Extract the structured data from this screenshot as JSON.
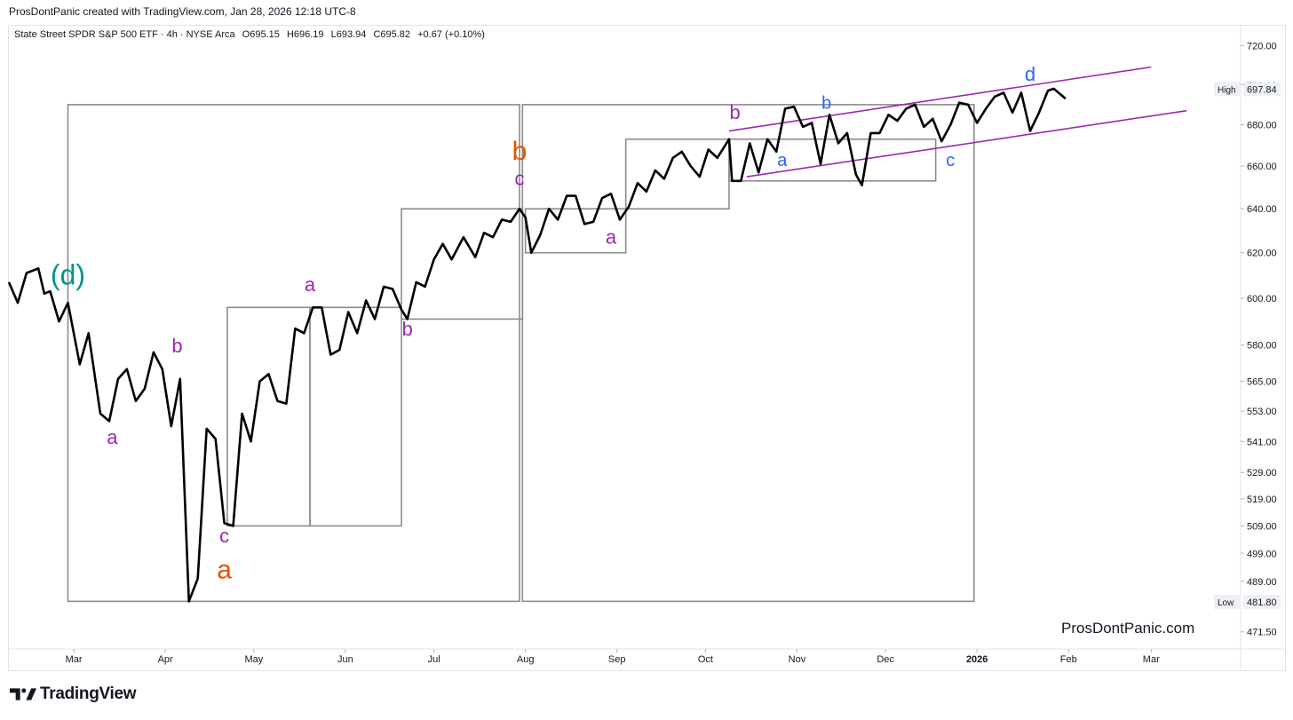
{
  "header": {
    "attribution": "ProsDontPanic created with TradingView.com, Jan 28, 2026 12:18 UTC-8"
  },
  "legend": {
    "symbol": "State Street SPDR S&P 500 ETF · 4h · NYSE Arca",
    "open": "O695.15",
    "high": "H696.19",
    "low": "L693.94",
    "close": "C695.82",
    "change": "+0.67 (+0.10%)"
  },
  "watermark": "ProsDontPanic.com",
  "footer": {
    "brand": "TradingView"
  },
  "colors": {
    "price_line": "#000000",
    "box": "#8c8c8c",
    "channel": "#9c27b0",
    "label_purple": "#9c27b0",
    "label_orange": "#e65100",
    "label_blue": "#2962ff",
    "label_teal": "#009688"
  },
  "chart_data": {
    "type": "line",
    "title": "State Street SPDR S&P 500 ETF",
    "scale": "log",
    "ylim": [
      466,
      730
    ],
    "xlim": [
      "2025-02-07",
      "2026-03-31"
    ],
    "x_ticks": [
      "Mar",
      "Apr",
      "May",
      "Jun",
      "Jul",
      "Aug",
      "Sep",
      "Oct",
      "Nov",
      "Dec",
      "2026",
      "Feb",
      "Mar"
    ],
    "y_ticks": [
      720,
      700,
      680,
      660,
      640,
      620,
      600,
      580,
      565,
      553,
      541,
      529,
      519,
      509,
      499,
      489,
      471.5
    ],
    "price_markers": [
      {
        "label": "High",
        "value": "697.84"
      },
      {
        "label": "Low",
        "value": "481.80"
      }
    ],
    "series": [
      {
        "values": [
          [
            "2025-02-07",
            607
          ],
          [
            "2025-02-10",
            598
          ],
          [
            "2025-02-13",
            611
          ],
          [
            "2025-02-17",
            613
          ],
          [
            "2025-02-19",
            602
          ],
          [
            "2025-02-21",
            603
          ],
          [
            "2025-02-24",
            590
          ],
          [
            "2025-02-27",
            598
          ],
          [
            "2025-03-03",
            572
          ],
          [
            "2025-03-06",
            585
          ],
          [
            "2025-03-10",
            552
          ],
          [
            "2025-03-13",
            549
          ],
          [
            "2025-03-16",
            566
          ],
          [
            "2025-03-19",
            570
          ],
          [
            "2025-03-22",
            557
          ],
          [
            "2025-03-25",
            562
          ],
          [
            "2025-03-28",
            577
          ],
          [
            "2025-03-31",
            570
          ],
          [
            "2025-04-03",
            547
          ],
          [
            "2025-04-06",
            566
          ],
          [
            "2025-04-09",
            482
          ],
          [
            "2025-04-12",
            490
          ],
          [
            "2025-04-15",
            546
          ],
          [
            "2025-04-18",
            542
          ],
          [
            "2025-04-21",
            510
          ],
          [
            "2025-04-24",
            509
          ],
          [
            "2025-04-27",
            552
          ],
          [
            "2025-04-30",
            541
          ],
          [
            "2025-05-03",
            565
          ],
          [
            "2025-05-06",
            568
          ],
          [
            "2025-05-09",
            557
          ],
          [
            "2025-05-12",
            556
          ],
          [
            "2025-05-15",
            587
          ],
          [
            "2025-05-18",
            585
          ],
          [
            "2025-05-21",
            596
          ],
          [
            "2025-05-24",
            596
          ],
          [
            "2025-05-27",
            576
          ],
          [
            "2025-05-30",
            578
          ],
          [
            "2025-06-02",
            594
          ],
          [
            "2025-06-05",
            585
          ],
          [
            "2025-06-08",
            599
          ],
          [
            "2025-06-11",
            591
          ],
          [
            "2025-06-14",
            605
          ],
          [
            "2025-06-17",
            604
          ],
          [
            "2025-06-20",
            595
          ],
          [
            "2025-06-22",
            591
          ],
          [
            "2025-06-25",
            607
          ],
          [
            "2025-06-28",
            605
          ],
          [
            "2025-07-01",
            617
          ],
          [
            "2025-07-04",
            624
          ],
          [
            "2025-07-07",
            617
          ],
          [
            "2025-07-11",
            627
          ],
          [
            "2025-07-15",
            618
          ],
          [
            "2025-07-18",
            629
          ],
          [
            "2025-07-21",
            627
          ],
          [
            "2025-07-24",
            635
          ],
          [
            "2025-07-27",
            634
          ],
          [
            "2025-07-30",
            640
          ],
          [
            "2025-08-01",
            636
          ],
          [
            "2025-08-03",
            620
          ],
          [
            "2025-08-06",
            628
          ],
          [
            "2025-08-09",
            640
          ],
          [
            "2025-08-12",
            635
          ],
          [
            "2025-08-15",
            646
          ],
          [
            "2025-08-18",
            646
          ],
          [
            "2025-08-21",
            633
          ],
          [
            "2025-08-24",
            634
          ],
          [
            "2025-08-27",
            645
          ],
          [
            "2025-08-30",
            647
          ],
          [
            "2025-09-02",
            635
          ],
          [
            "2025-09-05",
            641
          ],
          [
            "2025-09-08",
            652
          ],
          [
            "2025-09-11",
            648
          ],
          [
            "2025-09-14",
            658
          ],
          [
            "2025-09-17",
            654
          ],
          [
            "2025-09-20",
            664
          ],
          [
            "2025-09-23",
            667
          ],
          [
            "2025-09-26",
            660
          ],
          [
            "2025-09-29",
            655
          ],
          [
            "2025-10-02",
            668
          ],
          [
            "2025-10-05",
            664
          ],
          [
            "2025-10-09",
            673
          ],
          [
            "2025-10-10",
            653
          ],
          [
            "2025-10-13",
            653
          ],
          [
            "2025-10-16",
            671
          ],
          [
            "2025-10-19",
            657
          ],
          [
            "2025-10-22",
            673
          ],
          [
            "2025-10-25",
            667
          ],
          [
            "2025-10-28",
            688
          ],
          [
            "2025-10-31",
            689
          ],
          [
            "2025-11-03",
            679
          ],
          [
            "2025-11-06",
            681
          ],
          [
            "2025-11-09",
            661
          ],
          [
            "2025-11-12",
            685
          ],
          [
            "2025-11-15",
            671
          ],
          [
            "2025-11-18",
            676
          ],
          [
            "2025-11-21",
            656
          ],
          [
            "2025-11-23",
            651
          ],
          [
            "2025-11-26",
            676
          ],
          [
            "2025-11-29",
            676
          ],
          [
            "2025-12-02",
            685
          ],
          [
            "2025-12-05",
            682
          ],
          [
            "2025-12-08",
            688
          ],
          [
            "2025-12-11",
            690
          ],
          [
            "2025-12-14",
            679
          ],
          [
            "2025-12-17",
            683
          ],
          [
            "2025-12-20",
            672
          ],
          [
            "2025-12-23",
            680
          ],
          [
            "2025-12-26",
            691
          ],
          [
            "2025-12-29",
            690
          ],
          [
            "2026-01-01",
            681
          ],
          [
            "2026-01-04",
            688
          ],
          [
            "2026-01-07",
            694
          ],
          [
            "2026-01-10",
            696
          ],
          [
            "2026-01-13",
            686
          ],
          [
            "2026-01-16",
            696
          ],
          [
            "2026-01-19",
            677
          ],
          [
            "2026-01-22",
            686
          ],
          [
            "2026-01-25",
            697
          ],
          [
            "2026-01-27",
            698
          ],
          [
            "2026-01-31",
            693
          ]
        ]
      }
    ],
    "boxes": [
      {
        "x0": "2025-02-27",
        "x1": "2025-07-30",
        "y0": 482,
        "y1": 690
      },
      {
        "x0": "2025-07-31",
        "x1": "2025-12-31",
        "y0": 482,
        "y1": 690
      },
      {
        "x0": "2025-04-22",
        "x1": "2025-05-20",
        "y0": 509,
        "y1": 596
      },
      {
        "x0": "2025-05-20",
        "x1": "2025-06-20",
        "y0": 509,
        "y1": 596
      },
      {
        "x0": "2025-06-20",
        "x1": "2025-07-31",
        "y0": 591,
        "y1": 640
      },
      {
        "x0": "2025-08-01",
        "x1": "2025-09-04",
        "y0": 620,
        "y1": 640
      },
      {
        "x0": "2025-09-04",
        "x1": "2025-10-09",
        "y0": 640,
        "y1": 673
      },
      {
        "x0": "2025-10-09",
        "x1": "2025-12-18",
        "y0": 653,
        "y1": 673
      }
    ],
    "channel_lines": [
      {
        "x0": "2025-10-09",
        "y0": 677,
        "x1": "2026-03-01",
        "y1": 709
      },
      {
        "x0": "2025-10-15",
        "y0": 655,
        "x1": "2026-03-13",
        "y1": 687
      }
    ],
    "annotations": [
      {
        "text": "(d)",
        "x": "2025-02-27",
        "y": 606,
        "color": "teal",
        "size": 32
      },
      {
        "text": "a",
        "x": "2025-03-14",
        "y": 540,
        "color": "purple",
        "size": 22
      },
      {
        "text": "b",
        "x": "2025-04-05",
        "y": 577,
        "color": "purple",
        "size": 22
      },
      {
        "text": "c",
        "x": "2025-04-21",
        "y": 503,
        "color": "purple",
        "size": 22
      },
      {
        "text": "a",
        "x": "2025-04-21",
        "y": 490,
        "color": "orange",
        "size": 30
      },
      {
        "text": "a",
        "x": "2025-05-20",
        "y": 603,
        "color": "purple",
        "size": 22
      },
      {
        "text": "b",
        "x": "2025-06-22",
        "y": 584,
        "color": "purple",
        "size": 22
      },
      {
        "text": "b",
        "x": "2025-07-30",
        "y": 663,
        "color": "orange",
        "size": 30
      },
      {
        "text": "c",
        "x": "2025-07-30",
        "y": 651,
        "color": "purple",
        "size": 22
      },
      {
        "text": "a",
        "x": "2025-08-30",
        "y": 624,
        "color": "purple",
        "size": 22
      },
      {
        "text": "b",
        "x": "2025-10-11",
        "y": 683,
        "color": "purple",
        "size": 22
      },
      {
        "text": "a",
        "x": "2025-10-27",
        "y": 660,
        "color": "blue",
        "size": 20
      },
      {
        "text": "b",
        "x": "2025-11-11",
        "y": 688,
        "color": "blue",
        "size": 20
      },
      {
        "text": "c",
        "x": "2025-12-23",
        "y": 660,
        "color": "blue",
        "size": 20
      },
      {
        "text": "d",
        "x": "2026-01-19",
        "y": 702,
        "color": "blue",
        "size": 22
      }
    ]
  }
}
